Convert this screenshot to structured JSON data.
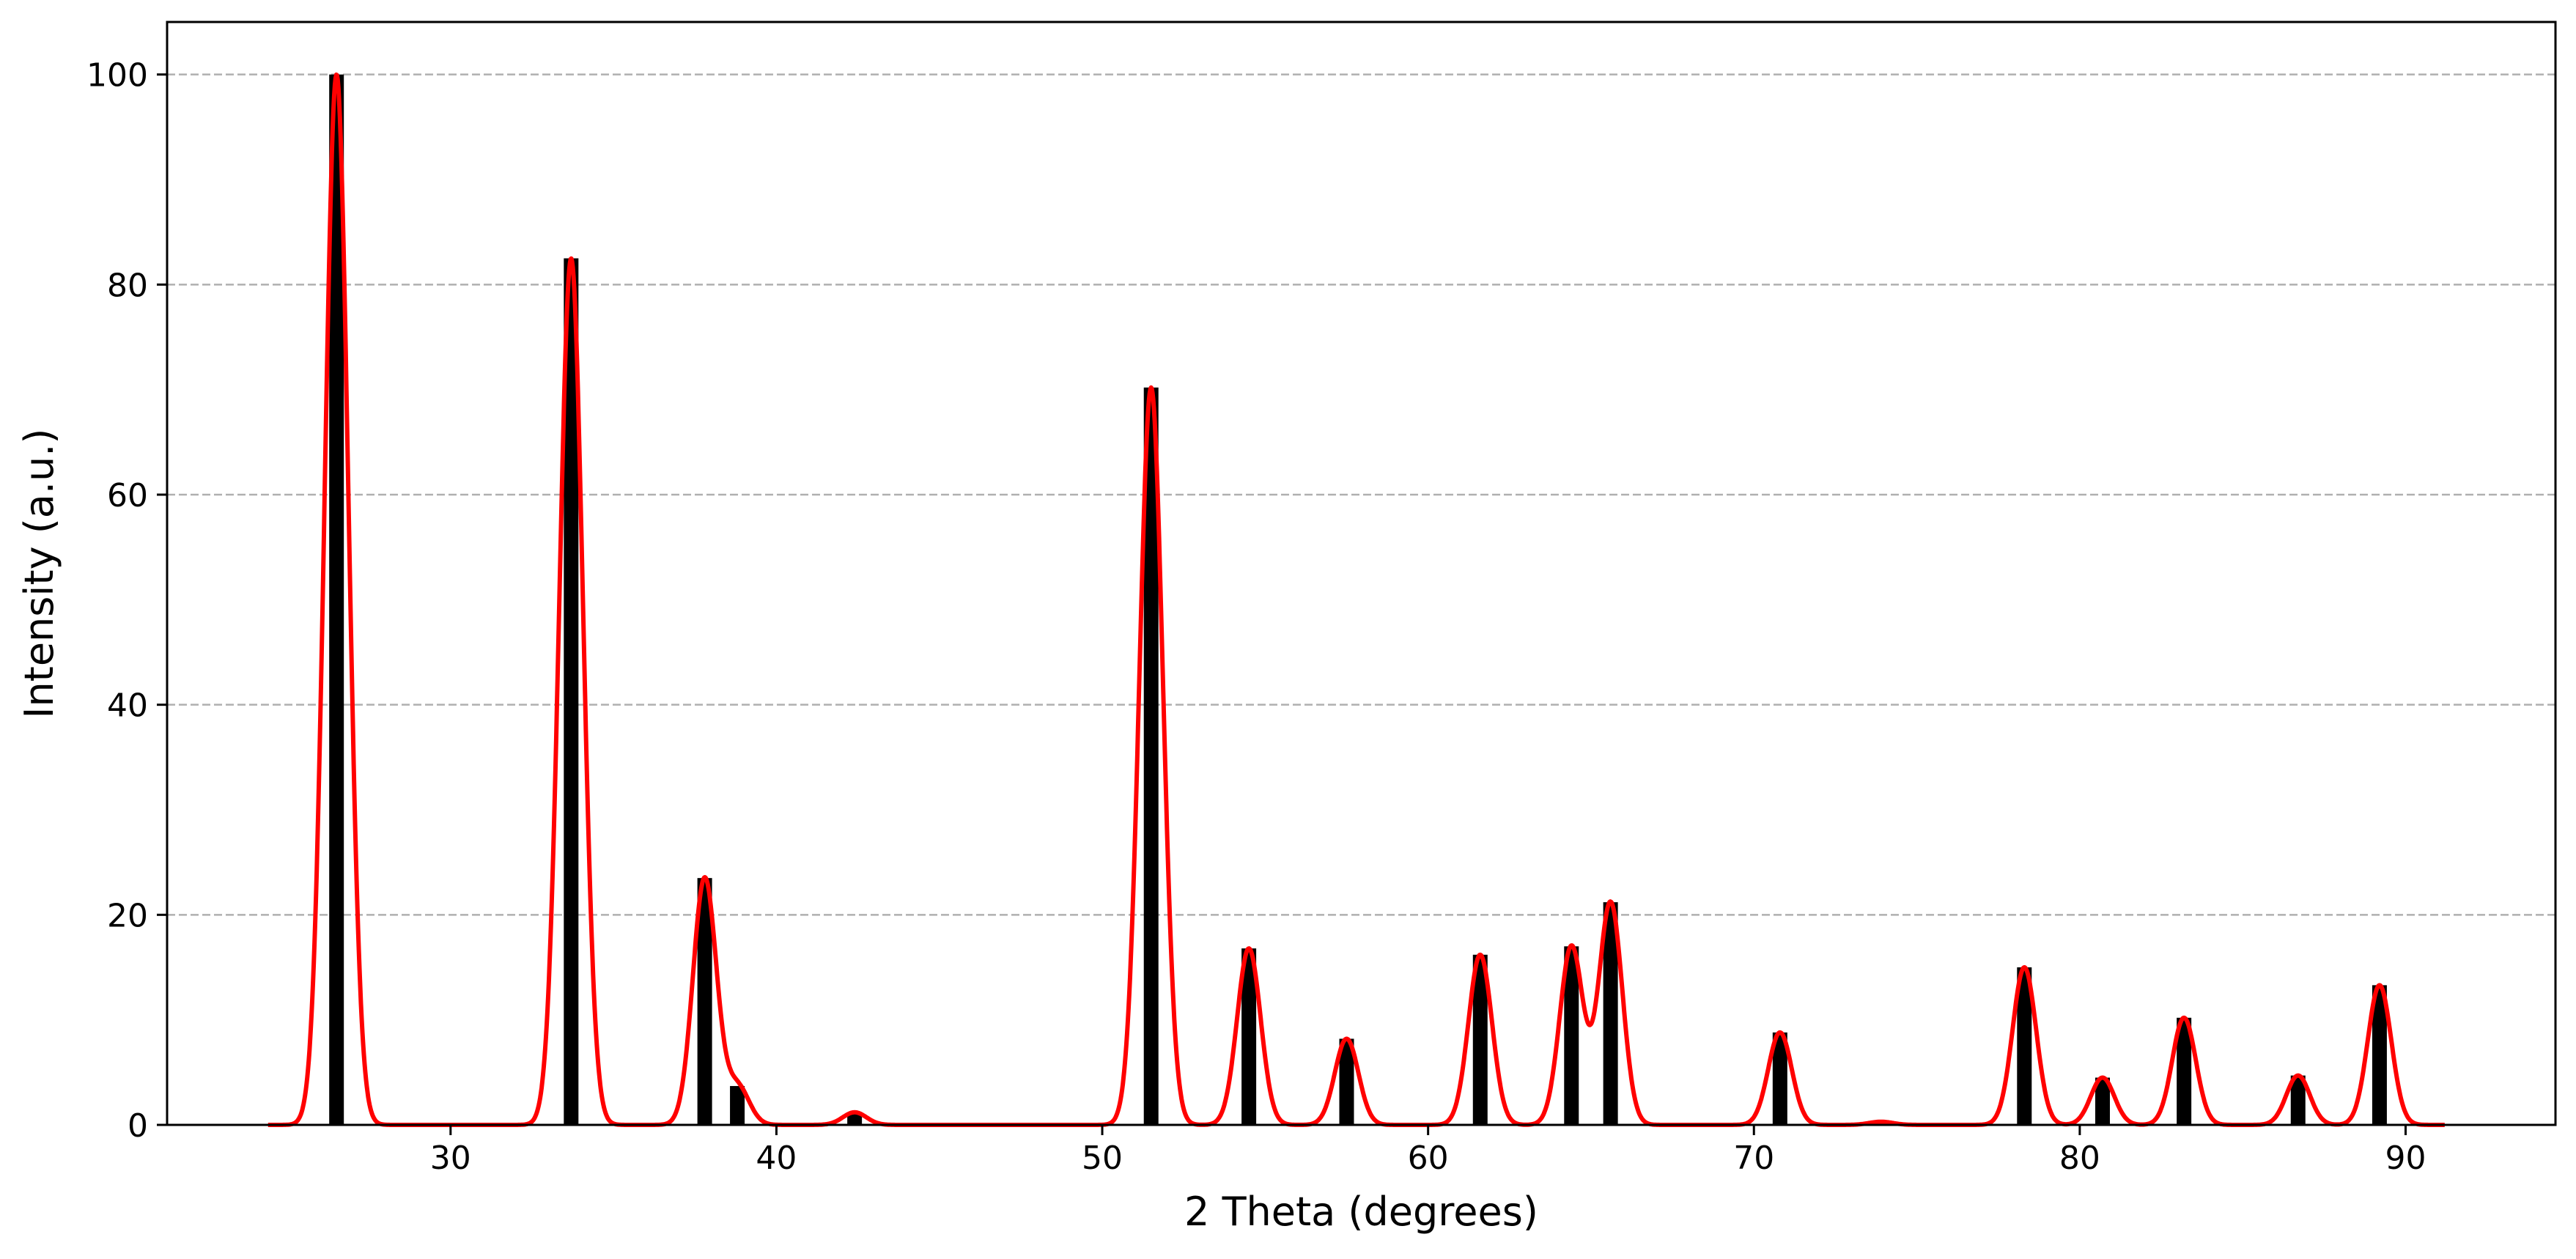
{
  "chart_data": {
    "type": "bar",
    "title": "",
    "xlabel": "2 Theta (degrees)",
    "ylabel": "Intensity (a.u.)",
    "xlim": [
      21.3,
      94.6
    ],
    "ylim": [
      0,
      105
    ],
    "xticks": [
      30,
      40,
      50,
      60,
      70,
      80,
      90
    ],
    "yticks": [
      0,
      20,
      40,
      60,
      80,
      100
    ],
    "grid": {
      "axis": "y",
      "style": "dashed"
    },
    "legend": "none",
    "peaks": {
      "x": [
        26.5,
        33.7,
        37.8,
        38.8,
        42.4,
        51.5,
        54.5,
        57.5,
        61.6,
        64.4,
        65.6,
        70.8,
        73.9,
        78.3,
        80.7,
        83.2,
        86.7,
        89.2
      ],
      "y": [
        100,
        82.5,
        23.5,
        3.7,
        1.2,
        70.2,
        16.8,
        8.2,
        16.2,
        17.0,
        21.2,
        8.8,
        0.3,
        15.0,
        4.5,
        10.2,
        4.7,
        13.3
      ]
    },
    "bar_color": "#000000",
    "profile": {
      "name": "",
      "x_range": [
        24.4,
        91.2
      ],
      "fwhm": 0.85,
      "color": "#ff0000"
    }
  }
}
